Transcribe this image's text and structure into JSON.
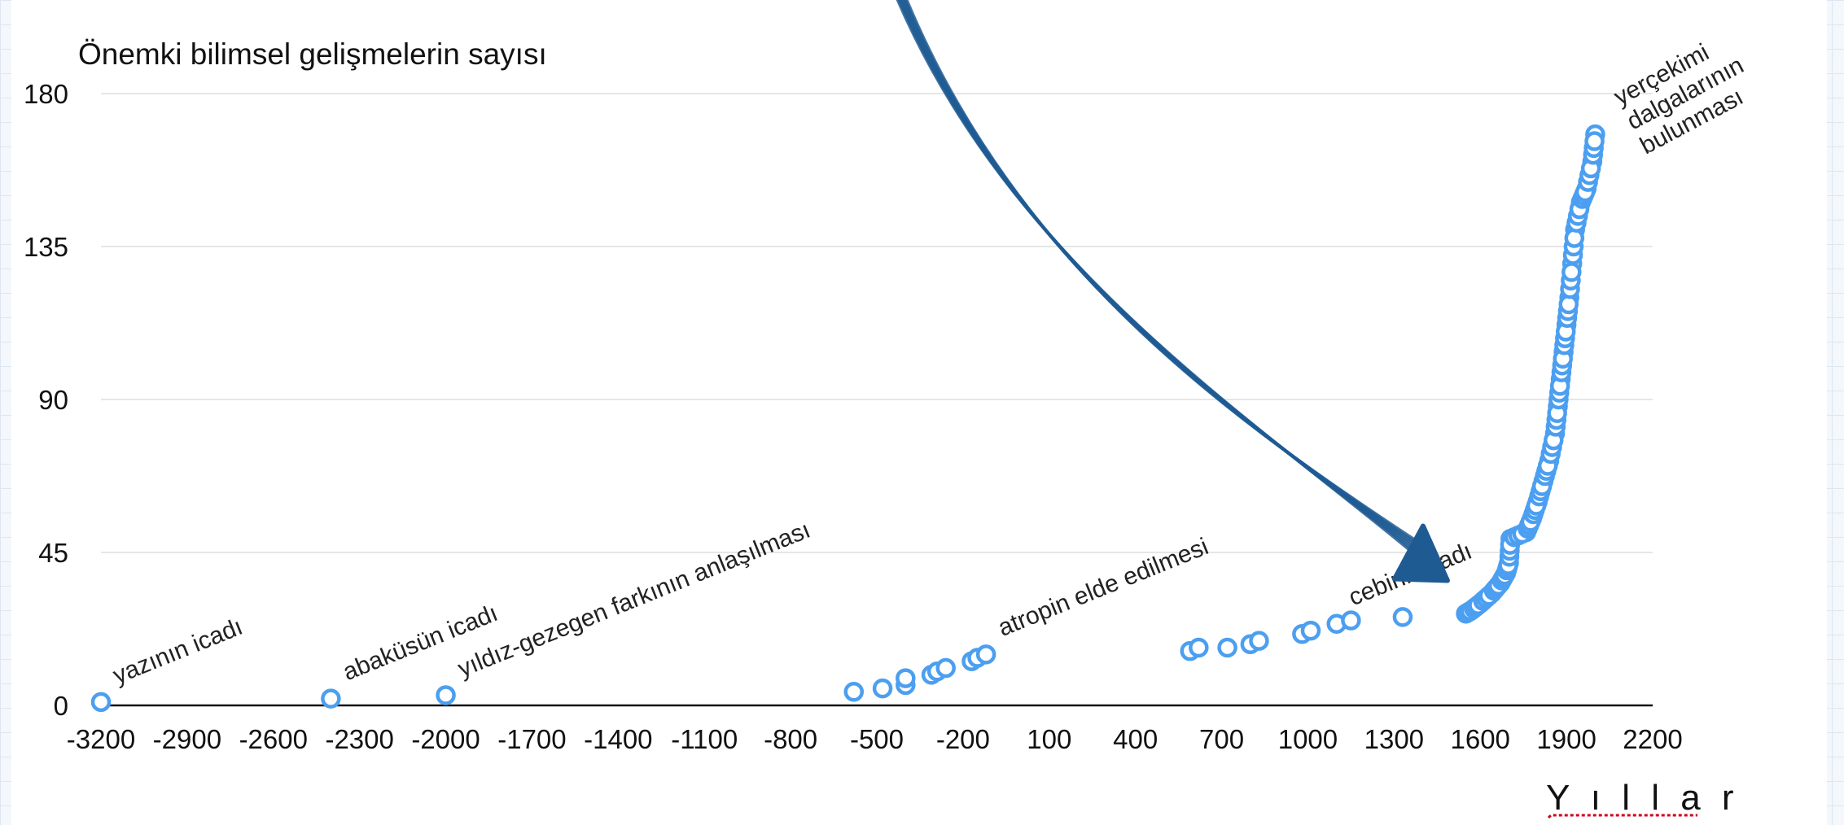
{
  "chart_data": {
    "type": "scatter",
    "title": "Önemki bilimsel gelişmelerin sayısı",
    "xlabel": "Y ı l l a r",
    "ylabel": "",
    "xlim": [
      -3200,
      2200
    ],
    "ylim": [
      0,
      180
    ],
    "x_ticks": [
      -3200,
      -2900,
      -2600,
      -2300,
      -2000,
      -1700,
      -1400,
      -1100,
      -800,
      -500,
      -200,
      100,
      400,
      700,
      1000,
      1300,
      1600,
      1900,
      2200
    ],
    "y_ticks": [
      0,
      45,
      90,
      135,
      180
    ],
    "grid": {
      "horizontal": true,
      "vertical": false
    },
    "marker": {
      "color": "#4c9ff0",
      "style": "hollow-circle"
    },
    "series": [
      {
        "points": [
          [
            -3200,
            1
          ],
          [
            -2400,
            2
          ],
          [
            -2000,
            3
          ],
          [
            -580,
            4
          ],
          [
            -480,
            5
          ],
          [
            -400,
            6
          ],
          [
            -400,
            8
          ],
          [
            -310,
            9
          ],
          [
            -290,
            10
          ],
          [
            -260,
            11
          ],
          [
            -170,
            13
          ],
          [
            -150,
            14
          ],
          [
            -120,
            15
          ],
          [
            590,
            16
          ],
          [
            620,
            17
          ],
          [
            720,
            17
          ],
          [
            800,
            18
          ],
          [
            830,
            19
          ],
          [
            980,
            21
          ],
          [
            1010,
            22
          ],
          [
            1100,
            24
          ],
          [
            1150,
            25
          ],
          [
            1330,
            26
          ],
          [
            1550,
            27
          ],
          [
            1570,
            28
          ],
          [
            1600,
            30
          ],
          [
            1640,
            33
          ],
          [
            1670,
            36
          ],
          [
            1690,
            39
          ],
          [
            1700,
            42
          ],
          [
            1705,
            49
          ],
          [
            1760,
            51
          ],
          [
            1780,
            55
          ],
          [
            1800,
            60
          ],
          [
            1820,
            66
          ],
          [
            1840,
            72
          ],
          [
            1860,
            80
          ],
          [
            1870,
            88
          ],
          [
            1880,
            96
          ],
          [
            1890,
            104
          ],
          [
            1900,
            112
          ],
          [
            1910,
            120
          ],
          [
            1920,
            130
          ],
          [
            1930,
            140
          ],
          [
            1950,
            148
          ],
          [
            1970,
            152
          ],
          [
            1990,
            160
          ],
          [
            2000,
            168
          ]
        ]
      }
    ],
    "annotations": [
      {
        "text": "yazının icadı",
        "x": -3200,
        "y": 1
      },
      {
        "text": "abaküsün icadı",
        "x": -2400,
        "y": 2
      },
      {
        "text": "yıldız-gezegen farkının anlaşılması",
        "x": -2000,
        "y": 3
      },
      {
        "text": "atropin elde edilmesi",
        "x": -120,
        "y": 15
      },
      {
        "text": "cebirin icadı",
        "x": 1100,
        "y": 24
      },
      {
        "lines": [
          "yerçekimi",
          "dalgalarının",
          "bulunması"
        ],
        "x": 2000,
        "y": 168
      }
    ],
    "arrow": {
      "color": "#1f5b93",
      "style": "hand-drawn",
      "target_x": 1500,
      "target_y": 42
    }
  }
}
